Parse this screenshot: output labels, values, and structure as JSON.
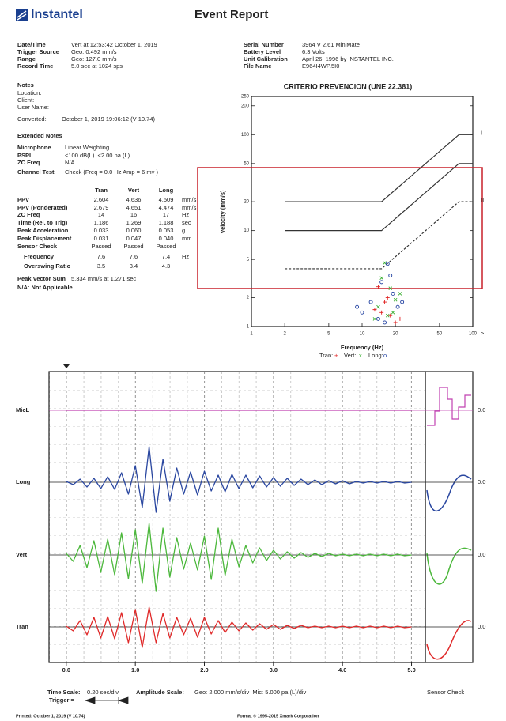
{
  "header": {
    "logo": "Instantel",
    "title": "Event Report"
  },
  "event_info": [
    {
      "label": "Date/Time",
      "value": "Vert at 12:53:42 October 1, 2019"
    },
    {
      "label": "Trigger Source",
      "value": "Geo: 0.492 mm/s"
    },
    {
      "label": "Range",
      "value": "Geo: 127.0 mm/s"
    },
    {
      "label": "Record Time",
      "value": "5.0 sec at 1024 sps"
    }
  ],
  "unit_info": [
    {
      "label": "Serial Number",
      "value": "3964 V 2.61 MiniMate"
    },
    {
      "label": "Battery Level",
      "value": "6.3 Volts"
    },
    {
      "label": "Unit Calibration",
      "value": "April 26, 1996 by INSTANTEL INC."
    },
    {
      "label": "File Name",
      "value": "E964I4WP.5I0"
    }
  ],
  "notes": {
    "title": "Notes",
    "items": [
      "Location:",
      "Client:",
      "User Name:"
    ],
    "converted": {
      "label": "Converted:",
      "value": "October 1, 2019 19:06:12 (V 10.74)"
    }
  },
  "extended_notes": {
    "title": "Extended Notes",
    "items": [
      {
        "label": "Microphone",
        "value": "Linear Weighting"
      },
      {
        "label": "PSPL",
        "value": "<100 dB(L)  <2.00 pa.(L)"
      },
      {
        "label": "ZC Freq",
        "value": "N/A"
      },
      {
        "label": "Channel Test",
        "value": "Check (Freq = 0.0 Hz Amp = 6 mv )"
      }
    ]
  },
  "ppv_table": {
    "columns": [
      "Tran",
      "Vert",
      "Long"
    ],
    "rows": [
      {
        "label": "PPV",
        "values": [
          "2.604",
          "4.636",
          "4.509"
        ],
        "unit": "mm/s"
      },
      {
        "label": "PPV (Ponderated)",
        "values": [
          "2.679",
          "4.651",
          "4.474"
        ],
        "unit": "mm/s"
      },
      {
        "label": "ZC Freq",
        "values": [
          "14",
          "16",
          "17"
        ],
        "unit": "Hz"
      },
      {
        "label": "Time (Rel. to Trig)",
        "values": [
          "1.186",
          "1.269",
          "1.188"
        ],
        "unit": "sec"
      },
      {
        "label": "Peak Acceleration",
        "values": [
          "0.033",
          "0.060",
          "0.053"
        ],
        "unit": "g"
      },
      {
        "label": "Peak Displacement",
        "values": [
          "0.031",
          "0.047",
          "0.040"
        ],
        "unit": "mm"
      },
      {
        "label": "Sensor Check",
        "values": [
          "Passed",
          "Passed",
          "Passed"
        ]
      },
      {
        "label": "Frequency",
        "values": [
          "7.6",
          "7.6",
          "7.4"
        ],
        "unit": "Hz"
      },
      {
        "label": "Overswing Ratio",
        "values": [
          "3.5",
          "3.4",
          "4.3"
        ]
      }
    ]
  },
  "peak_vector_sum": {
    "label": "Peak Vector Sum",
    "value": "5.334 mm/s at 1.271 sec"
  },
  "na_note": "N/A: Not Applicable",
  "frequency_chart": {
    "type": "scatter",
    "title": "CRITERIO PREVENCION (UNE 22.381)",
    "xlabel": "Frequency (Hz)",
    "ylabel": "Velocity (mm/s)",
    "log_x": true,
    "log_y": true,
    "xlim": [
      1,
      100
    ],
    "ylim": [
      1,
      250
    ],
    "xticks": [
      1,
      2,
      5,
      10,
      20,
      50,
      100
    ],
    "yticks": [
      1,
      2,
      5,
      10,
      20,
      50,
      100,
      200,
      250
    ],
    "x_end_label": ">",
    "series": [
      {
        "name": "Tran:",
        "marker": "+",
        "color": "#e02020",
        "x": [
          14,
          16,
          18,
          20,
          13,
          22,
          17,
          15
        ],
        "values": [
          2.6,
          1.8,
          1.3,
          1.1,
          1.5,
          1.2,
          2.0,
          1.4
        ]
      },
      {
        "name": "Vert:",
        "marker": "x",
        "color": "#3cb034",
        "x": [
          16,
          15,
          18,
          20,
          14,
          17,
          22,
          19,
          13
        ],
        "values": [
          4.6,
          3.2,
          2.5,
          1.9,
          1.6,
          1.3,
          2.2,
          1.4,
          1.2
        ]
      },
      {
        "name": "Long:",
        "marker": "o",
        "color": "#2040a0",
        "x": [
          17,
          12,
          10,
          15,
          19,
          21,
          14,
          18,
          9,
          16,
          23
        ],
        "values": [
          4.5,
          1.8,
          1.4,
          2.9,
          2.2,
          1.6,
          1.2,
          3.4,
          1.6,
          1.1,
          1.8
        ]
      }
    ],
    "criteria": [
      {
        "name": "I",
        "dashed": false,
        "x": [
          2,
          15,
          75,
          100
        ],
        "values": [
          20,
          20,
          100,
          100
        ]
      },
      {
        "dashed": false,
        "x": [
          2,
          15,
          75,
          100
        ],
        "values": [
          10,
          10,
          50,
          50
        ]
      },
      {
        "name": "II",
        "dashed": true,
        "x": [
          2,
          15,
          75,
          100
        ],
        "values": [
          4,
          4,
          20,
          20
        ]
      }
    ]
  },
  "waveform": {
    "type": "line",
    "xlim": [
      -0.25,
      5.2
    ],
    "xticks": [
      {
        "value": 0,
        "label": "0.0"
      },
      {
        "value": 1,
        "label": "1.0"
      },
      {
        "value": 2,
        "label": "2.0"
      },
      {
        "value": 3,
        "label": "3.0"
      },
      {
        "value": 4,
        "label": "4.0"
      },
      {
        "value": 5,
        "label": "5.0"
      }
    ],
    "x": [
      0,
      0.1,
      0.2,
      0.3,
      0.4,
      0.5,
      0.6,
      0.7,
      0.8,
      0.9,
      1,
      1.1,
      1.2,
      1.3,
      1.4,
      1.5,
      1.6,
      1.7,
      1.8,
      1.9,
      2,
      2.1,
      2.2,
      2.3,
      2.4,
      2.5,
      2.6,
      2.7,
      2.8,
      2.9,
      3,
      3.1,
      3.2,
      3.3,
      3.4,
      3.5,
      3.6,
      3.7,
      3.8,
      3.9,
      4,
      4.1,
      4.2,
      4.3,
      4.4,
      4.5,
      4.6,
      4.7,
      4.8,
      4.9,
      5
    ],
    "series": [
      {
        "name": "MicL",
        "color": "#c040b0",
        "sensor_value": "0.0",
        "values": [
          0,
          0,
          0,
          0,
          0,
          0,
          0,
          0,
          0,
          0,
          0,
          0,
          0,
          0,
          0,
          0,
          0,
          0,
          0,
          0,
          0,
          0,
          0,
          0,
          0,
          0,
          0,
          0,
          0,
          0,
          0,
          0,
          0,
          0,
          0,
          0,
          0,
          0,
          0,
          0,
          0,
          0,
          0,
          0,
          0,
          0,
          0,
          0,
          0,
          0,
          0
        ]
      },
      {
        "name": "Long",
        "color": "#2a47a0",
        "sensor_value": "0.0",
        "values": [
          0.1,
          -0.3,
          0.4,
          -0.6,
          0.5,
          -0.8,
          0.7,
          -0.9,
          1.2,
          -1.5,
          2.1,
          -3.2,
          4.5,
          -3.8,
          2.9,
          -2.4,
          1.8,
          -1.5,
          1.3,
          -1.6,
          1.4,
          -1.1,
          0.9,
          -1.2,
          1.0,
          -0.8,
          0.9,
          -0.7,
          0.8,
          -0.6,
          0.6,
          -0.5,
          0.5,
          -0.4,
          0.4,
          -0.3,
          0.3,
          -0.3,
          0.2,
          -0.2,
          0.2,
          -0.2,
          0.1,
          -0.1,
          0.1,
          -0.1,
          0.1,
          -0.1,
          0.1,
          -0.1,
          0
        ]
      },
      {
        "name": "Vert",
        "color": "#4cb83c",
        "sensor_value": "0.0",
        "values": [
          0.2,
          -0.8,
          1.2,
          -1.6,
          1.8,
          -2.2,
          2.0,
          -2.5,
          2.8,
          -3.0,
          3.2,
          -3.6,
          4.0,
          -4.6,
          3.4,
          -2.8,
          2.2,
          -1.8,
          1.5,
          -1.9,
          2.4,
          -3.1,
          3.4,
          -2.6,
          2.0,
          -1.5,
          1.2,
          -1.0,
          0.9,
          -0.7,
          0.6,
          -0.5,
          0.4,
          -0.4,
          0.3,
          -0.3,
          0.2,
          -0.2,
          0.2,
          -0.1,
          0.1,
          -0.1,
          0.1,
          -0.1,
          0.1,
          -0.1,
          0.1,
          -0.1,
          0.1,
          -0.1,
          0
        ]
      },
      {
        "name": "Tran",
        "color": "#e02a2a",
        "sensor_value": "0.0",
        "values": [
          0.1,
          -0.5,
          0.8,
          -1.0,
          1.2,
          -1.4,
          1.3,
          -1.5,
          1.8,
          -2.0,
          2.2,
          -2.6,
          2.5,
          -2.0,
          1.7,
          -1.4,
          1.2,
          -1.0,
          1.1,
          -1.3,
          1.2,
          -0.9,
          0.8,
          -0.7,
          0.6,
          -0.5,
          0.5,
          -0.4,
          0.4,
          -0.3,
          0.3,
          -0.3,
          0.2,
          -0.2,
          0.2,
          -0.1,
          0.1,
          -0.1,
          0.1,
          -0.1,
          0.1,
          -0.1,
          0.1,
          -0.1,
          0.1,
          -0.1,
          0.1,
          -0.1,
          0.1,
          -0.1,
          0
        ]
      }
    ]
  },
  "footer": {
    "time_scale": {
      "label": "Time Scale:",
      "value": "0.20 sec/div"
    },
    "amplitude_scale": {
      "label": "Amplitude Scale:",
      "value": "Geo: 2.000 mm/s/div  Mic: 5.000 pa.(L)/div"
    },
    "trigger": "Trigger =",
    "sensor_check": "Sensor Check",
    "printed": "Printed: October 1, 2019 (V 10.74)",
    "format": "Format © 1995-2015 Xmark Corporation"
  }
}
